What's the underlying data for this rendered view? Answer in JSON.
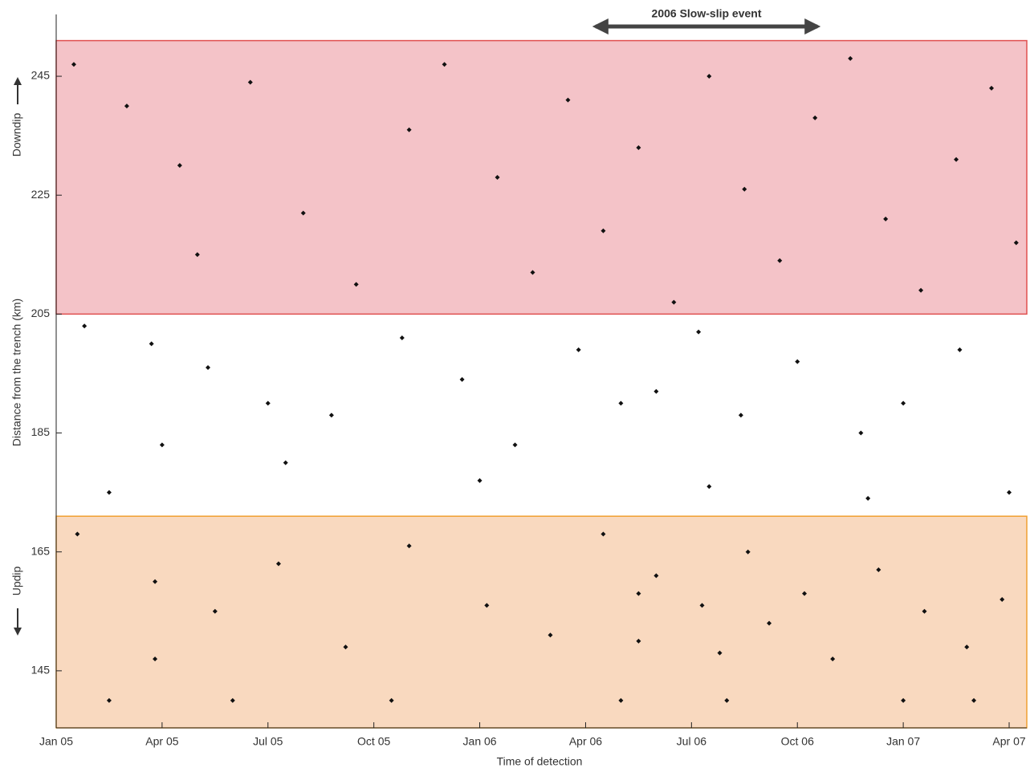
{
  "chart_data": {
    "type": "scatter",
    "xlabel": "Time of detection",
    "ylabel": "Distance from the trench (km)",
    "direction_labels": {
      "up": "Downdip",
      "down": "Updip"
    },
    "xlim": [
      0,
      27.5
    ],
    "ylim": [
      135.4,
      255.4
    ],
    "xticks": [
      {
        "value": 0,
        "label": "Jan 05"
      },
      {
        "value": 3,
        "label": "Apr 05"
      },
      {
        "value": 6,
        "label": "Jul 05"
      },
      {
        "value": 9,
        "label": "Oct 05"
      },
      {
        "value": 12,
        "label": "Jan 06"
      },
      {
        "value": 15,
        "label": "Apr 06"
      },
      {
        "value": 18,
        "label": "Jul 06"
      },
      {
        "value": 21,
        "label": "Oct 06"
      },
      {
        "value": 24,
        "label": "Jan 07"
      },
      {
        "value": 27,
        "label": "Apr 07"
      }
    ],
    "yticks": [
      145,
      165,
      185,
      205,
      225,
      245
    ],
    "bands": [
      {
        "range": [
          205,
          251
        ],
        "color": "#f4c3c8",
        "edge": "#e0504f"
      },
      {
        "range": [
          135.4,
          171
        ],
        "color": "#f9d9bf",
        "edge": "#f0a030"
      }
    ],
    "annotation": {
      "text": "2006 Slow-slip event",
      "x_span": [
        15.1,
        21.75
      ]
    },
    "color": "#111111",
    "x": [
      0.5,
      2,
      3.5,
      4,
      5.5,
      7,
      8.5,
      10,
      11,
      12.5,
      13.5,
      14.5,
      15.5,
      16.5,
      17.5,
      18.5,
      19.5,
      20.5,
      21.5,
      22.5,
      23.5,
      24.5,
      25.5,
      26.5,
      27.2,
      0.8,
      2.7,
      4.3,
      6,
      7.8,
      9.8,
      11.5,
      13,
      14.8,
      16,
      17,
      18.2,
      19.4,
      21,
      22.8,
      24,
      25.6,
      27,
      1.5,
      6.5,
      12,
      18.5,
      23,
      3,
      0.6,
      2.8,
      2.8,
      4.5,
      6.3,
      8.2,
      10,
      12.2,
      14,
      15.5,
      16.5,
      16.5,
      17,
      18.3,
      18.8,
      19.6,
      20.2,
      21.2,
      22,
      23.3,
      24.6,
      25.8,
      26.8,
      1.5,
      5,
      9.5,
      16,
      19,
      24,
      26
    ],
    "y": [
      247,
      240,
      230,
      215,
      244,
      222,
      210,
      236,
      247,
      228,
      212,
      241,
      219,
      233,
      207,
      245,
      226,
      214,
      238,
      248,
      221,
      209,
      231,
      243,
      217,
      203,
      200,
      196,
      190,
      188,
      201,
      194,
      183,
      199,
      190,
      192,
      202,
      188,
      197,
      185,
      190,
      199,
      175,
      175,
      180,
      177,
      176,
      174,
      183,
      168,
      160,
      147,
      155,
      163,
      149,
      166,
      156,
      151,
      168,
      158,
      150,
      161,
      156,
      148,
      165,
      153,
      158,
      147,
      162,
      155,
      149,
      157,
      140,
      140,
      140,
      140,
      140,
      140,
      140
    ]
  }
}
